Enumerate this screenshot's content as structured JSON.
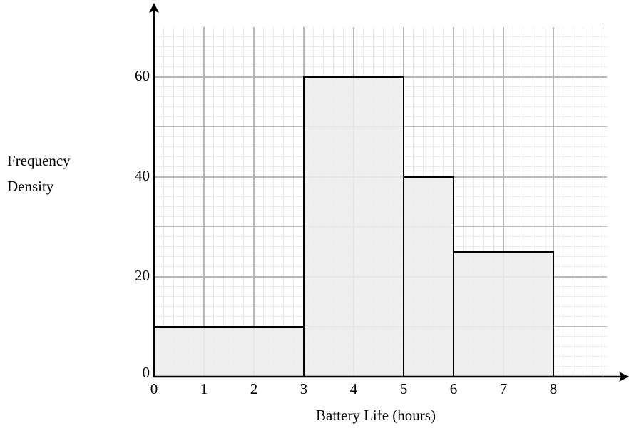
{
  "chart_data": {
    "type": "histogram",
    "xlabel": "Battery Life (hours)",
    "ylabel": [
      "Frequency",
      "Density"
    ],
    "bins": [
      0,
      3,
      5,
      6,
      8
    ],
    "values": [
      10,
      60,
      40,
      25
    ],
    "color": "#ececec",
    "xlim": [
      0,
      9
    ],
    "ylim": [
      0,
      70
    ],
    "xticks": [
      0,
      1,
      2,
      3,
      4,
      5,
      6,
      7,
      8
    ],
    "yticks": [
      0,
      20,
      40,
      60
    ],
    "grid": true
  }
}
